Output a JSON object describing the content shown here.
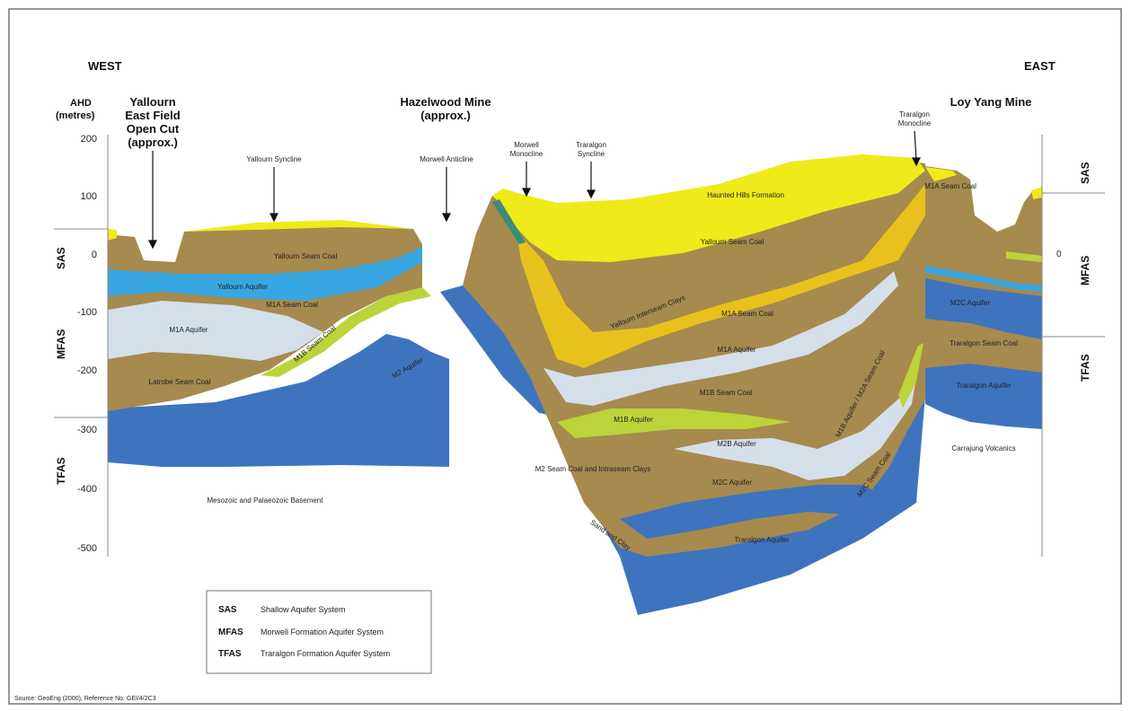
{
  "labels": {
    "west": "WEST",
    "east": "EAST",
    "ahd_line1": "AHD",
    "ahd_line2": "(metres)",
    "yallourn_l1": "Yallourn",
    "yallourn_l2": "East Field",
    "yallourn_l3": "Open Cut",
    "yallourn_l4": "(approx.)",
    "hazelwood_l1": "Hazelwood Mine",
    "hazelwood_l2": "(approx.)",
    "loyyang": "Loy Yang Mine",
    "yallourn_syncline": "Yallourn Syncline",
    "morwell_anticline": "Morwell Anticline",
    "morwell_monocline_l1": "Morwell",
    "morwell_monocline_l2": "Monocline",
    "traralgon_syncline_l1": "Traralgon",
    "traralgon_syncline_l2": "Syncline",
    "traralgon_monocline_l1": "Traralgon",
    "traralgon_monocline_l2": "Monocline"
  },
  "axis": {
    "ticks": [
      "200",
      "100",
      "0",
      "-100",
      "-200",
      "-300",
      "-400",
      "-500"
    ],
    "left_systems": [
      "SAS",
      "MFAS",
      "TFAS"
    ],
    "right_systems": [
      "SAS",
      "MFAS",
      "TFAS"
    ]
  },
  "units": {
    "haunted_hills": "Haunted Hills Formation",
    "yallourn_seam_w": "Yallourn Seam Coal",
    "yallourn_aquifer": "Yallourn Aquifer",
    "m1a_seam_w": "M1A Seam Coal",
    "m1a_aquifer_w": "M1A Aquifer",
    "m1b_w": "M1B Seam Coal",
    "latrobe_seam": "Latrobe Seam Coal",
    "m2_aquifer": "M2 Aquifer",
    "basement": "Mesozoic and Palaeozoic Basement",
    "yallourn_seam_c": "Yallourn Seam Coal",
    "yallourn_interseam": "Yallourn Interseam Clays",
    "m1a_seam_c": "M1A Seam Coal",
    "m1a_aquifer_c": "M1A Aquifer",
    "m1b_seam_c": "M1B Seam Coal",
    "m1b_aquifer": "M1B Aquifer",
    "m2b_aquifer": "M2B Aquifer",
    "m1b_m2a": "M1B Aquifer / M2A Seam Coal",
    "m2_seam_clays": "M2 Seam Coal and Intraseam Clays",
    "m2c_seam_coal": "M2C Seam Coal",
    "m2c_aquifer": "M2C Aquifer",
    "sand_clay": "Sand and Clay",
    "traralgon_aquifer_c": "Traralgon Aquifer",
    "m2c_aquifer_e": "M2C Aquifer",
    "traralgon_seam_e": "Traralgon Seam Coal",
    "traralgon_aquifer_e": "Traralgon Aquifer",
    "carrajung": "Carrajung Volcanics",
    "m1a_seam_e": "M1A Seam Coal"
  },
  "legend": [
    {
      "abbr": "SAS",
      "name": "Shallow Aquifer System"
    },
    {
      "abbr": "MFAS",
      "name": "Morwell Formation Aquifer System"
    },
    {
      "abbr": "TFAS",
      "name": "Traralgon Formation Aquifer System"
    }
  ],
  "source": "Source: GeoEng (2000), Reference No. GEI/4/2C3",
  "colors": {
    "brown": "#A68A4E",
    "yellow": "#F0EA1A",
    "gold": "#E8C21C",
    "lightblue": "#D5DFEA",
    "blue": "#3E74BE",
    "cyan": "#38A6E0",
    "lime": "#BCD33A",
    "border": "#777777"
  }
}
